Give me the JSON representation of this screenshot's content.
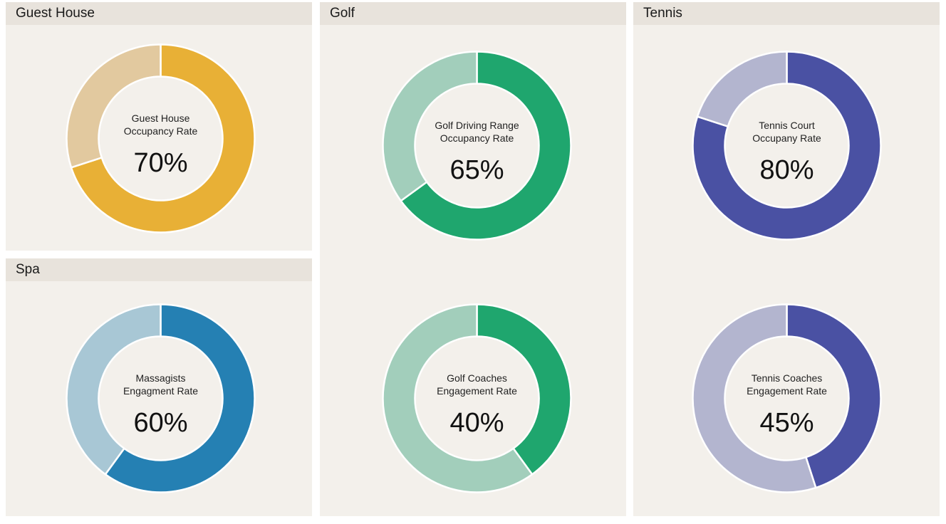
{
  "panels": {
    "guest_house": {
      "title": "Guest House"
    },
    "spa": {
      "title": "Spa"
    },
    "golf": {
      "title": "Golf"
    },
    "tennis": {
      "title": "Tennis"
    }
  },
  "chart_data": [
    {
      "type": "pie",
      "panel": "Guest House",
      "label_lines": [
        "Guest House",
        "Occupancy Rate"
      ],
      "value": 70,
      "display": "70%",
      "color": "#e8b036",
      "remainder_color": "#e2c99f"
    },
    {
      "type": "pie",
      "panel": "Spa",
      "label_lines": [
        "Massagists",
        "Engagment Rate"
      ],
      "value": 60,
      "display": "60%",
      "color": "#2580b3",
      "remainder_color": "#a8c7d5"
    },
    {
      "type": "pie",
      "panel": "Golf",
      "label_lines": [
        "Golf Driving Range",
        "Occupancy Rate"
      ],
      "value": 65,
      "display": "65%",
      "color": "#1fa66e",
      "remainder_color": "#a2cebb"
    },
    {
      "type": "pie",
      "panel": "Golf",
      "label_lines": [
        "Golf Coaches",
        "Engagement Rate"
      ],
      "value": 40,
      "display": "40%",
      "color": "#1fa66e",
      "remainder_color": "#a2cebb"
    },
    {
      "type": "pie",
      "panel": "Tennis",
      "label_lines": [
        "Tennis Court",
        "Occupany Rate"
      ],
      "value": 80,
      "display": "80%",
      "color": "#4a51a3",
      "remainder_color": "#b3b5cf"
    },
    {
      "type": "pie",
      "panel": "Tennis",
      "label_lines": [
        "Tennis Coaches",
        "Engagement Rate"
      ],
      "value": 45,
      "display": "45%",
      "color": "#4a51a3",
      "remainder_color": "#b3b5cf"
    }
  ]
}
